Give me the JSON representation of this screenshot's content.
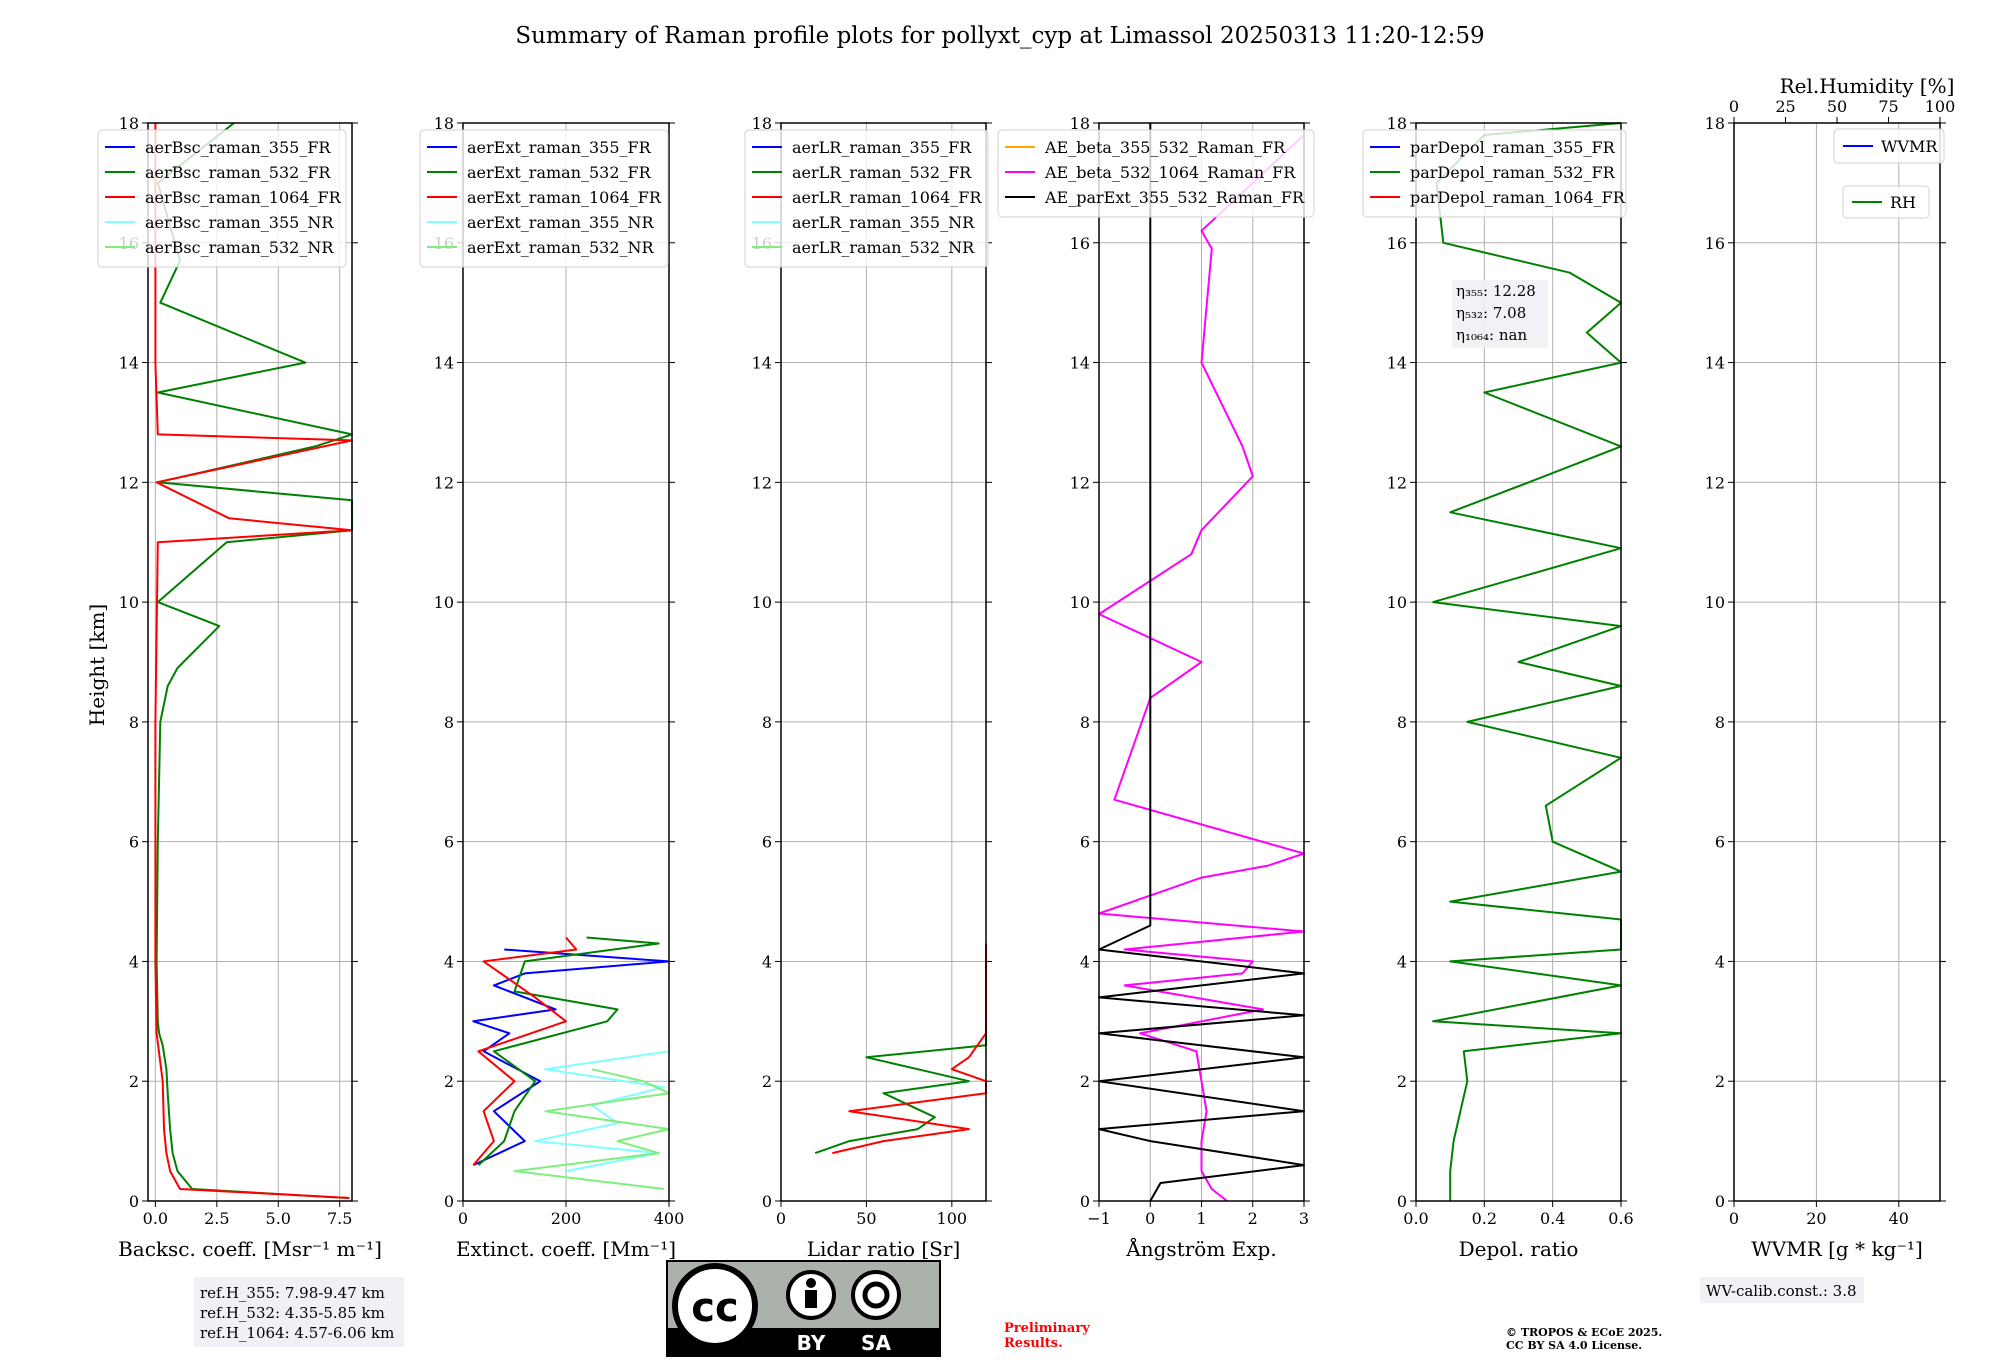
{
  "figure": {
    "title": "Summary of Raman profile plots for pollyxt_cyp at Limassol 20250313 11:20-12:59",
    "ylabel": "Height [km]",
    "ylim": [
      0,
      18
    ],
    "yticks": [
      "0",
      "2",
      "4",
      "6",
      "8",
      "10",
      "12",
      "14",
      "16",
      "18"
    ]
  },
  "colors": {
    "blue": "#0000ff",
    "green": "#008000",
    "red": "#ff0000",
    "cyan": "#7fffff",
    "lightgreen": "#7fee7f",
    "orange": "#ffa500",
    "magenta": "#ff00ff",
    "black": "#000000"
  },
  "chart_data": [
    {
      "type": "line",
      "xlabel": "Backsc. coeff. [Msr⁻¹ m⁻¹]",
      "xlim": [
        -0.3,
        8.0
      ],
      "xticks": [
        "0.0",
        "2.5",
        "5.0",
        "7.5"
      ],
      "xtick_values": [
        0,
        2.5,
        5.0,
        7.5
      ],
      "legend": [
        "aerBsc_raman_355_FR",
        "aerBsc_raman_532_FR",
        "aerBsc_raman_1064_FR",
        "aerBsc_raman_355_NR",
        "aerBsc_raman_532_NR"
      ],
      "series": [
        {
          "name": "aerBsc_raman_532_FR",
          "color": "green",
          "y": [
            0.05,
            0.2,
            0.5,
            0.8,
            1.2,
            1.8,
            2.2,
            2.6,
            2.8,
            3.0,
            4.0,
            6.0,
            8.0,
            8.6,
            8.9,
            9.6,
            10.0,
            11.0,
            11.2,
            11.7,
            12.0,
            12.6,
            12.8,
            13.5,
            14.0,
            15.0,
            15.7,
            17.0,
            18.0
          ],
          "x": [
            7.8,
            1.5,
            0.9,
            0.7,
            0.6,
            0.5,
            0.45,
            0.3,
            0.15,
            0.1,
            0.05,
            0.1,
            0.2,
            0.5,
            0.9,
            2.6,
            0.1,
            2.9,
            8.0,
            8.0,
            0.1,
            6.5,
            8.0,
            0.1,
            6.1,
            0.2,
            1.0,
            0.1,
            3.2
          ]
        },
        {
          "name": "aerBsc_raman_1064_FR",
          "color": "red",
          "y": [
            0.05,
            0.2,
            0.5,
            0.8,
            1.2,
            2.0,
            2.8,
            4.0,
            8.0,
            11.0,
            11.2,
            11.4,
            12.0,
            12.7,
            12.8,
            14.0,
            18.0
          ],
          "x": [
            7.9,
            1.0,
            0.6,
            0.45,
            0.35,
            0.3,
            0.05,
            0.0,
            0.0,
            0.1,
            8.0,
            3.0,
            0.05,
            8.0,
            0.1,
            0.0,
            0.0
          ]
        }
      ],
      "annotation": [
        "ref.H_355: 7.98-9.47 km",
        "ref.H_532: 4.35-5.85 km",
        "ref.H_1064: 4.57-6.06 km"
      ]
    },
    {
      "type": "line",
      "xlabel": "Extinct. coeff. [Mm⁻¹]",
      "xlim": [
        0,
        400
      ],
      "xticks": [
        "0",
        "200",
        "400"
      ],
      "xtick_values": [
        0,
        200,
        400
      ],
      "legend": [
        "aerExt_raman_355_FR",
        "aerExt_raman_532_FR",
        "aerExt_raman_1064_FR",
        "aerExt_raman_355_NR",
        "aerExt_raman_532_NR"
      ],
      "series": [
        {
          "name": "aerExt_raman_355_FR",
          "color": "blue",
          "y": [
            0.6,
            1.0,
            1.5,
            2.0,
            2.5,
            2.8,
            3.0,
            3.2,
            3.6,
            3.8,
            4.0,
            4.2
          ],
          "x": [
            20,
            120,
            60,
            150,
            40,
            90,
            20,
            180,
            60,
            120,
            400,
            80
          ]
        },
        {
          "name": "aerExt_raman_532_FR",
          "color": "green",
          "y": [
            0.6,
            1.0,
            1.5,
            2.0,
            2.5,
            3.0,
            3.2,
            3.5,
            4.0,
            4.3,
            4.4
          ],
          "x": [
            30,
            80,
            100,
            140,
            60,
            280,
            300,
            100,
            120,
            380,
            240
          ]
        },
        {
          "name": "aerExt_raman_1064_FR",
          "color": "red",
          "y": [
            0.6,
            1.0,
            1.5,
            2.0,
            2.5,
            3.0,
            3.4,
            4.0,
            4.2,
            4.4
          ],
          "x": [
            20,
            60,
            40,
            100,
            30,
            200,
            140,
            40,
            220,
            200
          ]
        },
        {
          "name": "aerExt_raman_355_NR",
          "color": "cyan",
          "y": [
            0.5,
            0.8,
            1.0,
            1.3,
            1.6,
            1.9,
            2.2,
            2.5
          ],
          "x": [
            200,
            380,
            140,
            300,
            250,
            390,
            160,
            400
          ]
        },
        {
          "name": "aerExt_raman_532_NR",
          "color": "lightgreen",
          "y": [
            0.2,
            0.5,
            0.8,
            1.0,
            1.2,
            1.5,
            1.8,
            2.0,
            2.2
          ],
          "x": [
            390,
            100,
            380,
            300,
            400,
            160,
            400,
            350,
            250
          ]
        }
      ]
    },
    {
      "type": "line",
      "xlabel": "Lidar ratio [Sr]",
      "xlim": [
        0,
        120
      ],
      "xticks": [
        "0",
        "50",
        "100"
      ],
      "xtick_values": [
        0,
        50,
        100
      ],
      "legend": [
        "aerLR_raman_355_FR",
        "aerLR_raman_532_FR",
        "aerLR_raman_1064_FR",
        "aerLR_raman_355_NR",
        "aerLR_raman_532_NR"
      ],
      "series": [
        {
          "name": "aerLR_raman_532_FR",
          "color": "green",
          "y": [
            0.8,
            1.0,
            1.2,
            1.4,
            1.8,
            2.0,
            2.2,
            2.4,
            2.6,
            2.8,
            3.0,
            3.1
          ],
          "x": [
            20,
            40,
            80,
            90,
            60,
            110,
            80,
            50,
            120,
            120,
            120,
            120
          ]
        },
        {
          "name": "aerLR_raman_1064_FR",
          "color": "red",
          "y": [
            0.8,
            1.0,
            1.2,
            1.5,
            1.8,
            2.0,
            2.2,
            2.4,
            2.8,
            3.0,
            3.4,
            3.6,
            4.2,
            4.3
          ],
          "x": [
            30,
            60,
            110,
            40,
            120,
            120,
            100,
            110,
            120,
            120,
            120,
            120,
            120,
            120
          ]
        }
      ]
    },
    {
      "type": "line",
      "xlabel": "Ångström Exp.",
      "xlim": [
        -1,
        3
      ],
      "xticks": [
        "−1",
        "0",
        "1",
        "2",
        "3"
      ],
      "xtick_values": [
        -1,
        0,
        1,
        2,
        3
      ],
      "legend": [
        "AE_beta_355_532_Raman_FR",
        "AE_beta_532_1064_Raman_FR",
        "AE_parExt_355_532_Raman_FR"
      ],
      "series": [
        {
          "name": "AE_beta_532_1064_Raman_FR",
          "color": "magenta",
          "y": [
            0.0,
            0.2,
            0.5,
            1.0,
            1.5,
            2.0,
            2.5,
            2.8,
            3.2,
            3.6,
            3.8,
            4.0,
            4.2,
            4.5,
            4.8,
            5.4,
            5.6,
            5.8,
            6.7,
            8.4,
            9.0,
            9.8,
            10.8,
            11.2,
            12.1,
            12.6,
            14.0,
            15.9,
            16.2,
            17.8
          ],
          "x": [
            1.5,
            1.2,
            1.0,
            1.0,
            1.1,
            1.0,
            0.9,
            -0.2,
            2.2,
            -0.5,
            1.8,
            2.0,
            -0.5,
            3.0,
            -1.0,
            1.0,
            2.3,
            3.0,
            -0.7,
            0.0,
            1.0,
            -1.0,
            0.8,
            1.0,
            2.0,
            1.8,
            1.0,
            1.2,
            1.0,
            3.0
          ]
        },
        {
          "name": "AE_parExt_355_532_Raman_FR",
          "color": "black",
          "y": [
            0.0,
            0.3,
            0.6,
            1.0,
            1.2,
            1.5,
            2.0,
            2.4,
            2.8,
            3.1,
            3.4,
            3.8,
            4.2,
            4.6,
            5.0,
            10.0,
            18.0
          ],
          "x": [
            0.0,
            0.2,
            3.0,
            0.0,
            -1.0,
            3.0,
            -1.0,
            3.0,
            -1.0,
            3.0,
            -1.0,
            3.0,
            -1.0,
            0.0,
            0.0,
            0.0,
            0.0
          ]
        }
      ]
    },
    {
      "type": "line",
      "xlabel": "Depol. ratio",
      "xlim": [
        0,
        0.6
      ],
      "xticks": [
        "0.0",
        "0.2",
        "0.4",
        "0.6"
      ],
      "xtick_values": [
        0,
        0.2,
        0.4,
        0.6
      ],
      "legend": [
        "parDepol_raman_355_FR",
        "parDepol_raman_532_FR",
        "parDepol_raman_1064_FR"
      ],
      "series": [
        {
          "name": "parDepol_raman_532_FR",
          "color": "green",
          "y": [
            0.0,
            0.5,
            1.0,
            1.5,
            2.0,
            2.5,
            2.8,
            3.0,
            3.6,
            4.0,
            4.2,
            4.7,
            5.0,
            5.5,
            6.0,
            6.6,
            7.4,
            8.0,
            8.6,
            9.0,
            9.6,
            10.0,
            10.9,
            11.5,
            12.0,
            12.6,
            13.5,
            14.0,
            14.5,
            15.0,
            15.5,
            16.0,
            17.0,
            17.8,
            18.0
          ],
          "x": [
            0.1,
            0.1,
            0.11,
            0.13,
            0.15,
            0.14,
            0.6,
            0.05,
            0.6,
            0.1,
            0.6,
            0.6,
            0.1,
            0.6,
            0.4,
            0.38,
            0.6,
            0.15,
            0.6,
            0.3,
            0.6,
            0.05,
            0.6,
            0.1,
            0.33,
            0.6,
            0.2,
            0.6,
            0.5,
            0.6,
            0.45,
            0.08,
            0.06,
            0.2,
            0.6
          ]
        }
      ],
      "annotation": [
        "η₃₅₅: 12.28",
        "η₅₃₂: 7.08",
        "η₁₀₆₄: nan"
      ]
    },
    {
      "type": "line",
      "xlabel": "WVMR [g * kg⁻¹]",
      "xlim": [
        0,
        50
      ],
      "xticks": [
        "0",
        "20",
        "40"
      ],
      "xtick_values": [
        0,
        20,
        40
      ],
      "top_xlabel": "Rel.Humidity [%]",
      "top_xticks": [
        "0",
        "25",
        "50",
        "75",
        "100"
      ],
      "top_xtick_values": [
        0,
        25,
        50,
        75,
        100
      ],
      "legend": [
        "WVMR",
        "RH"
      ],
      "series": [],
      "annotation": [
        "WV-calib.const.: 3.8"
      ]
    }
  ],
  "footer": {
    "license_badge_cc": "cc",
    "license_badge_by": "BY",
    "license_badge_sa": "SA",
    "preliminary_line1": "Preliminary",
    "preliminary_line2": "Results.",
    "copyright_line1": "© TROPOS & ECoE 2025.",
    "copyright_line2": "CC BY SA 4.0 License."
  }
}
